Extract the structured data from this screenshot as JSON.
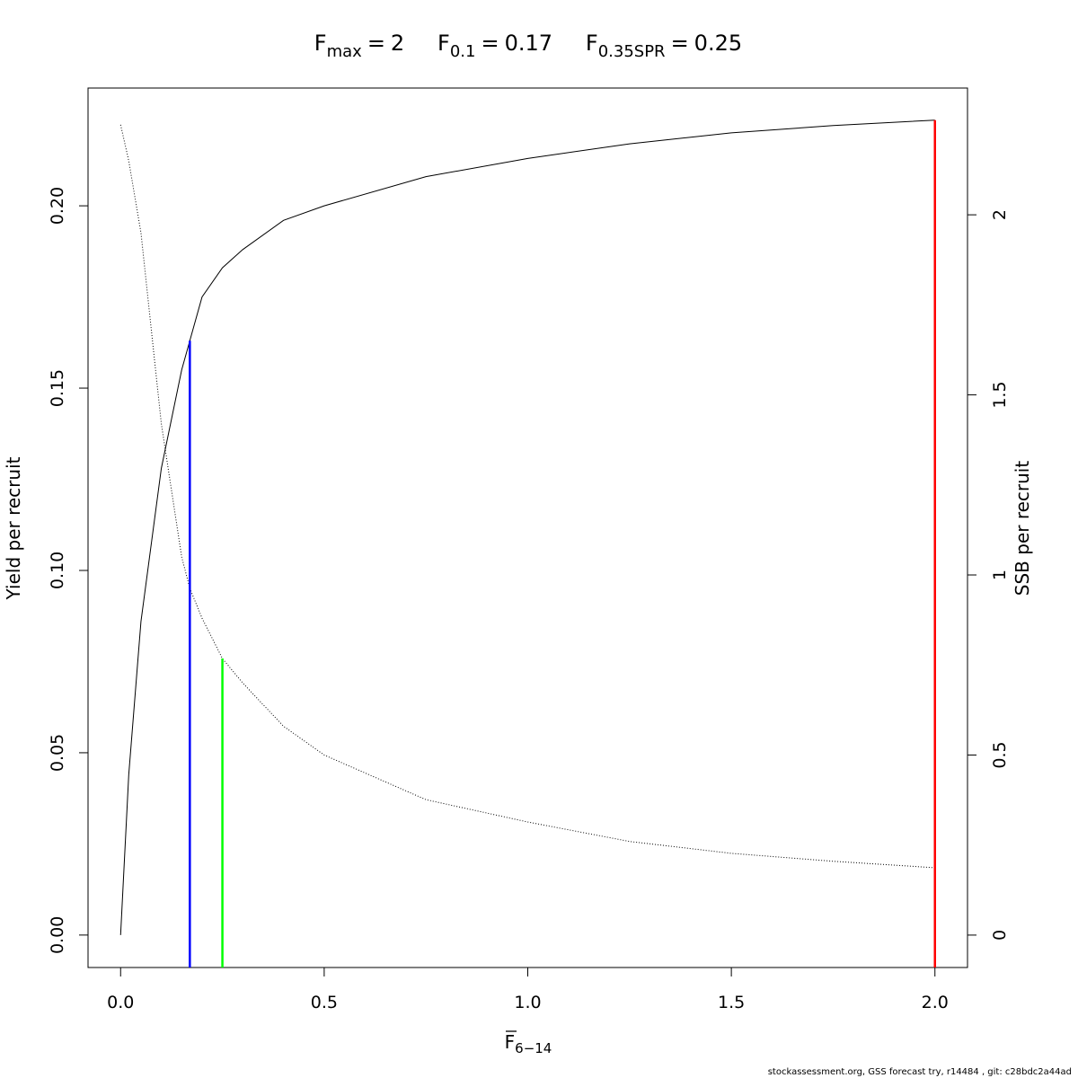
{
  "chart_data": {
    "type": "line",
    "reference_lines": [
      {
        "label": "F",
        "label_sub": "max",
        "operator": "=",
        "x": 2,
        "y_end": 0.2235,
        "axis": "y",
        "color": "#ff0000"
      },
      {
        "label": "F",
        "label_sub": "0.1",
        "operator": "=",
        "x": 0.17,
        "y_end": 0.163,
        "axis": "y",
        "color": "#0000ff"
      },
      {
        "label": "F",
        "label_sub": "0.35SPR",
        "operator": "=",
        "x": 0.25,
        "y_end": 0.768,
        "axis": "y2",
        "color": "#00ff00"
      }
    ],
    "x": [
      0,
      0.02,
      0.05,
      0.1,
      0.15,
      0.17,
      0.2,
      0.25,
      0.3,
      0.4,
      0.5,
      0.75,
      1,
      1.25,
      1.5,
      1.75,
      2
    ],
    "series": [
      {
        "name": "Yield per recruit",
        "color": "#000000",
        "dash": false,
        "values": [
          0,
          0.044,
          0.086,
          0.128,
          0.155,
          0.163,
          0.175,
          0.183,
          0.188,
          0.196,
          0.2,
          0.208,
          0.213,
          0.217,
          0.22,
          0.222,
          0.2235
        ]
      },
      {
        "name": "SSB per recruit",
        "color": "#000000",
        "dash": true,
        "axis": "y2",
        "values": [
          2.25,
          2.15,
          1.95,
          1.42,
          1.05,
          0.963,
          0.88,
          0.768,
          0.7,
          0.58,
          0.5,
          0.376,
          0.314,
          0.26,
          0.227,
          0.205,
          0.187
        ]
      }
    ],
    "x_label": {
      "text": "F",
      "subscript": "6−14"
    },
    "y_label": "Yield per recruit",
    "y2_label": "SSB per recruit",
    "xlim": [
      -0.08,
      2.08
    ],
    "ylim": [
      -0.0089,
      0.2323
    ],
    "y2lim": [
      -0.09,
      2.352
    ],
    "xticks": [
      {
        "value": 0,
        "label": "0.0"
      },
      0.5,
      {
        "value": 1,
        "label": "1.0"
      },
      1.5,
      {
        "value": 2,
        "label": "2.0"
      }
    ],
    "yticks": [
      {
        "value": 0,
        "label": "0.00"
      },
      0.05,
      {
        "value": 0.1,
        "label": "0.10"
      },
      0.15,
      {
        "value": 0.2,
        "label": "0.20"
      }
    ],
    "y2ticks": [
      0,
      0.5,
      1,
      1.5,
      2
    ],
    "footnote": "stockassessment.org, GSS forecast try, r14484 , git: c28bdc2a44ad"
  }
}
